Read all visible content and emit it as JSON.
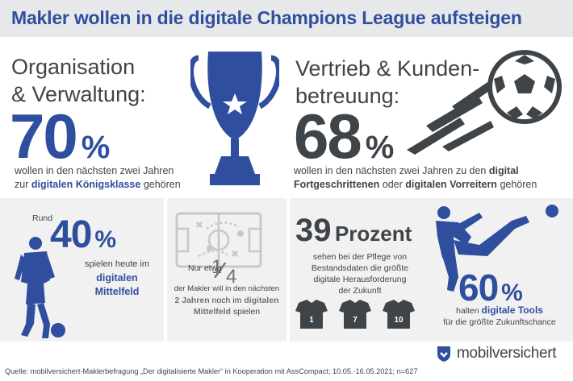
{
  "header": {
    "title": "Makler wollen in die digitale Champions League aufsteigen"
  },
  "colors": {
    "blue": "#2f4f9e",
    "dark": "#3f4449",
    "band": "#e7e8e9"
  },
  "left_top": {
    "heading_line1": "Organisation",
    "heading_line2": "& Verwaltung:",
    "percent_value": "70",
    "percent_sign": "%",
    "text_line1": "wollen in den nächsten zwei Jahren",
    "text_line2_prefix": "zur",
    "text_line2_hl1": "digitalen",
    "text_line2_hl2": "Königsklasse",
    "text_line2_suffix": "gehören",
    "icon": "trophy-icon"
  },
  "right_top": {
    "heading_line1": "Vertrieb & Kunden-",
    "heading_line2": "betreuung:",
    "percent_value": "68",
    "percent_sign": "%",
    "text_line1_prefix": "wollen in den nächsten zwei Jahren zu den",
    "text_line1_hl": "digital",
    "text_line2_hl1": "Fortgeschrittenen",
    "text_line2_mid": "oder",
    "text_line2_hl2": "digitalen Vorreitern",
    "text_line2_suffix": "gehören",
    "icon": "football-icon"
  },
  "mid_left": {
    "pre": "Rund",
    "percent_value": "40",
    "percent_sign": "%",
    "text_line1": "spielen heute im",
    "text_line2_hl": "digitalen",
    "text_line3_hl": "Mittelfeld",
    "icon": "player-icon"
  },
  "mid_center": {
    "fraction_num": "1",
    "fraction_den": "4",
    "text_line1": "Nur etwa",
    "text_line2": "der Makler will in den nächsten",
    "text_line3_hl": "2 Jahren",
    "text_line3_suffix": "noch im",
    "text_line3_hl2": "digitalen",
    "text_line4_hl": "Mittelfeld",
    "text_line4_suffix": "spielen",
    "icon": "tactics-board-icon"
  },
  "mid_right": {
    "value": "39",
    "unit": "Prozent",
    "text_line1": "sehen bei der Pflege von",
    "text_line2": "Bestandsdaten die größte",
    "text_line3": "digitale Herausforderung",
    "text_line4": "der Zukunft",
    "shirts": [
      "1",
      "7",
      "10"
    ]
  },
  "far_right": {
    "percent_value": "60",
    "percent_sign": "%",
    "text_line1_prefix": "halten",
    "text_line1_hl": "digitale Tools",
    "text_line2": "für die größte Zukunftschance",
    "icon": "kicking-player-icon"
  },
  "footer": {
    "source": "Quelle: mobilversichert-Maklerbefragung „Der digitalisierte Makler“ in Kooperation mit AssCompact; 10.05.-16.05.2021; n=627",
    "brand": "mobilversichert",
    "icon": "mobilversichert-logo-icon"
  }
}
